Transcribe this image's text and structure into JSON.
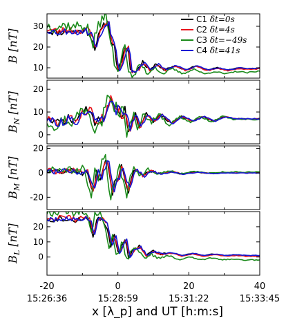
{
  "chart_data": {
    "type": "line",
    "xlabel": "x [λ_p] and UT [h:m:s]",
    "xlim": [
      -20,
      40
    ],
    "x_ticks": [
      -20,
      0,
      20,
      40
    ],
    "x_time_labels": [
      "15:26:36",
      "15:28:59",
      "15:31:22",
      "15:33:45"
    ],
    "legend": {
      "placement": "top-right",
      "entries": [
        {
          "id": "C1",
          "label": "C1",
          "dt": "δt=0s",
          "color": "#000000"
        },
        {
          "id": "C2",
          "label": "C2",
          "dt": "δt=4s",
          "color": "#e8141c"
        },
        {
          "id": "C3",
          "label": "C3",
          "dt": "δt=−49s",
          "color": "#1a8a1a"
        },
        {
          "id": "C4",
          "label": "C4",
          "dt": "δt=41s",
          "color": "#1515d4"
        }
      ]
    },
    "panels": [
      {
        "id": "B",
        "ylabel": "B [nT]",
        "ylim": [
          5,
          36
        ],
        "yticks": [
          10,
          20,
          30
        ],
        "keypoints": [
          [
            -20,
            28
          ],
          [
            -17,
            27
          ],
          [
            -14,
            28
          ],
          [
            -12,
            27
          ],
          [
            -10,
            28
          ],
          [
            -8,
            27
          ],
          [
            -6.5,
            20
          ],
          [
            -5,
            27
          ],
          [
            -4,
            30
          ],
          [
            -3,
            33
          ],
          [
            -2,
            24
          ],
          [
            -1,
            20
          ],
          [
            0,
            9
          ],
          [
            1,
            12
          ],
          [
            2,
            19
          ],
          [
            2.8,
            21
          ],
          [
            3.5,
            9
          ],
          [
            5,
            8
          ],
          [
            7,
            13
          ],
          [
            9,
            9
          ],
          [
            11,
            12
          ],
          [
            13,
            9
          ],
          [
            16,
            11
          ],
          [
            19,
            9
          ],
          [
            22,
            11
          ],
          [
            25,
            9
          ],
          [
            28,
            10
          ],
          [
            31,
            9
          ],
          [
            34,
            10
          ],
          [
            37,
            9.5
          ],
          [
            40,
            10
          ]
        ],
        "series": [
          {
            "id": "C1",
            "amp": 1.0,
            "shift": 0.0,
            "noise": 1.8,
            "seed": 11
          },
          {
            "id": "C2",
            "amp": 1.05,
            "shift": 0.2,
            "noise": 1.8,
            "seed": 23
          },
          {
            "id": "C3",
            "amp": 1.25,
            "shift": -0.6,
            "noise": 2.6,
            "seed": 37
          },
          {
            "id": "C4",
            "amp": 1.0,
            "shift": 0.4,
            "noise": 1.6,
            "seed": 53
          }
        ]
      },
      {
        "id": "BN",
        "ylabel": "B_N [nT]",
        "ylim": [
          -4,
          24
        ],
        "yticks": [
          0,
          10,
          20
        ],
        "keypoints": [
          [
            -20,
            7
          ],
          [
            -17,
            5
          ],
          [
            -14,
            7
          ],
          [
            -12,
            6
          ],
          [
            -10,
            10
          ],
          [
            -8,
            11
          ],
          [
            -6,
            4
          ],
          [
            -5,
            8
          ],
          [
            -4,
            6
          ],
          [
            -3,
            12
          ],
          [
            -2,
            17
          ],
          [
            -1,
            10
          ],
          [
            0,
            12
          ],
          [
            1,
            8
          ],
          [
            2,
            11
          ],
          [
            3,
            2
          ],
          [
            4,
            6
          ],
          [
            5,
            9
          ],
          [
            6,
            3
          ],
          [
            8,
            9
          ],
          [
            10,
            6
          ],
          [
            12,
            9
          ],
          [
            15,
            5
          ],
          [
            18,
            8
          ],
          [
            21,
            6
          ],
          [
            24,
            8
          ],
          [
            27,
            6
          ],
          [
            30,
            8
          ],
          [
            33,
            7
          ],
          [
            36,
            7
          ],
          [
            40,
            7
          ]
        ],
        "series": [
          {
            "id": "C1",
            "amp": 1.0,
            "shift": 0.0,
            "noise": 2.0,
            "seed": 71
          },
          {
            "id": "C2",
            "amp": 1.05,
            "shift": 0.2,
            "noise": 2.0,
            "seed": 83
          },
          {
            "id": "C3",
            "amp": 1.3,
            "shift": -0.6,
            "noise": 2.8,
            "seed": 97
          },
          {
            "id": "C4",
            "amp": 1.0,
            "shift": 0.4,
            "noise": 1.8,
            "seed": 113
          }
        ]
      },
      {
        "id": "BM",
        "ylabel": "B_M [nT]",
        "ylim": [
          -30,
          22
        ],
        "yticks": [
          -20,
          0,
          20
        ],
        "keypoints": [
          [
            -20,
            2
          ],
          [
            -17,
            1
          ],
          [
            -14,
            2
          ],
          [
            -12,
            1
          ],
          [
            -10,
            0
          ],
          [
            -9,
            3
          ],
          [
            -8,
            -6
          ],
          [
            -7,
            -15
          ],
          [
            -6,
            2
          ],
          [
            -5,
            -5
          ],
          [
            -4,
            5
          ],
          [
            -3,
            12
          ],
          [
            -2,
            -10
          ],
          [
            -1.5,
            -20
          ],
          [
            -1,
            -8
          ],
          [
            0,
            -5
          ],
          [
            1,
            5
          ],
          [
            2,
            -5
          ],
          [
            3,
            -15
          ],
          [
            4,
            -2
          ],
          [
            5,
            3
          ],
          [
            7,
            -3
          ],
          [
            9,
            2
          ],
          [
            12,
            -1
          ],
          [
            15,
            1
          ],
          [
            18,
            -1
          ],
          [
            22,
            0.5
          ],
          [
            26,
            -0.5
          ],
          [
            30,
            0
          ],
          [
            35,
            0
          ],
          [
            40,
            0
          ]
        ],
        "series": [
          {
            "id": "C1",
            "amp": 1.0,
            "shift": 0.0,
            "noise": 2.5,
            "seed": 131
          },
          {
            "id": "C2",
            "amp": 1.05,
            "shift": 0.2,
            "noise": 2.5,
            "seed": 149
          },
          {
            "id": "C3",
            "amp": 1.35,
            "shift": -0.6,
            "noise": 3.5,
            "seed": 167
          },
          {
            "id": "C4",
            "amp": 0.9,
            "shift": 0.4,
            "noise": 2.2,
            "seed": 181
          }
        ]
      },
      {
        "id": "BL",
        "ylabel": "B_L [nT]",
        "ylim": [
          -12,
          30
        ],
        "yticks": [
          0,
          10,
          20
        ],
        "keypoints": [
          [
            -20,
            25
          ],
          [
            -17,
            25
          ],
          [
            -14,
            26
          ],
          [
            -12,
            24
          ],
          [
            -10,
            26
          ],
          [
            -8,
            24
          ],
          [
            -7,
            14
          ],
          [
            -6,
            24
          ],
          [
            -5,
            25
          ],
          [
            -4,
            24
          ],
          [
            -3,
            20
          ],
          [
            -2,
            8
          ],
          [
            -1,
            14
          ],
          [
            0,
            2
          ],
          [
            1,
            6
          ],
          [
            2,
            12
          ],
          [
            3,
            0
          ],
          [
            4,
            4
          ],
          [
            6,
            7
          ],
          [
            8,
            1
          ],
          [
            10,
            4
          ],
          [
            12,
            2
          ],
          [
            15,
            3
          ],
          [
            18,
            1
          ],
          [
            21,
            2.5
          ],
          [
            24,
            1
          ],
          [
            27,
            2
          ],
          [
            30,
            1
          ],
          [
            33,
            1.5
          ],
          [
            36,
            1
          ],
          [
            40,
            1
          ]
        ],
        "series": [
          {
            "id": "C1",
            "amp": 1.0,
            "shift": 0.0,
            "noise": 1.8,
            "seed": 199
          },
          {
            "id": "C2",
            "amp": 1.05,
            "shift": 0.2,
            "noise": 1.8,
            "seed": 211
          },
          {
            "id": "C3",
            "amp": 1.3,
            "shift": -0.6,
            "noise": 2.8,
            "seed": 227
          },
          {
            "id": "C4",
            "amp": 1.0,
            "shift": 0.4,
            "noise": 1.6,
            "seed": 241
          }
        ]
      }
    ]
  }
}
